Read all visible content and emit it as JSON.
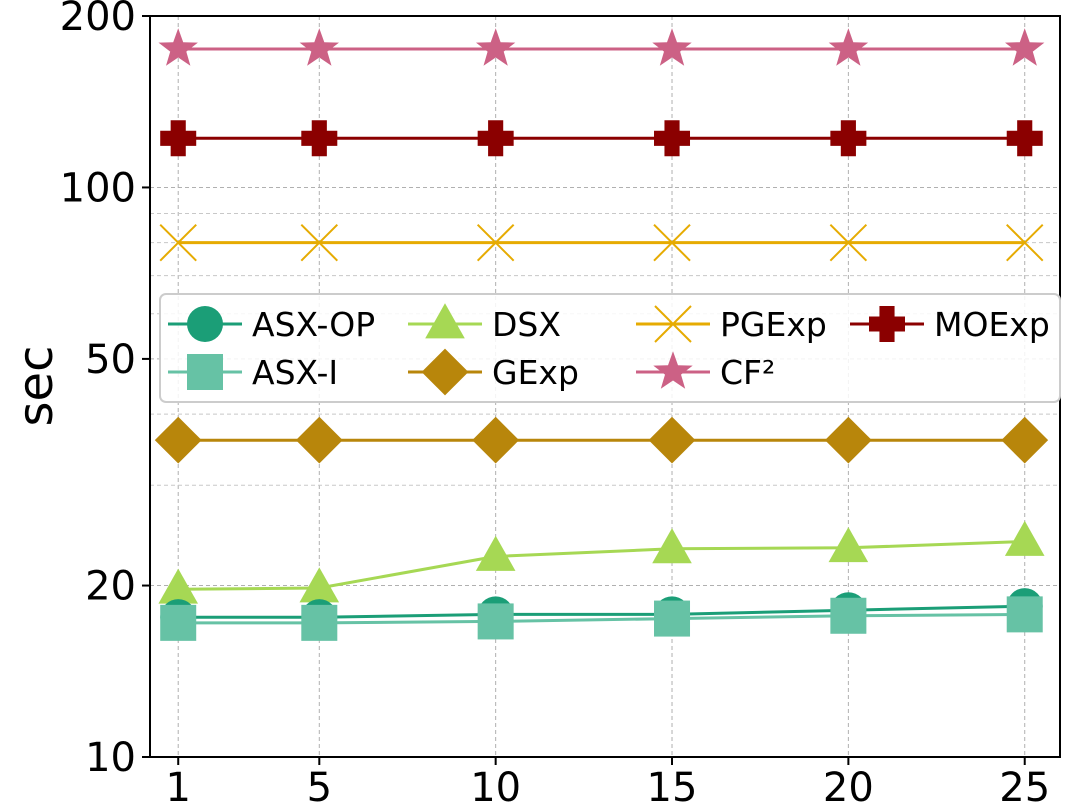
{
  "chart_data": {
    "type": "line",
    "title": "",
    "xlabel": "",
    "ylabel": "sec",
    "yscale": "log",
    "ylim": [
      10,
      200
    ],
    "y_ticks": [
      10,
      20,
      50,
      100,
      200
    ],
    "x": [
      1,
      5,
      10,
      15,
      20,
      25
    ],
    "grid": true,
    "legend_position": "center (upper middle)",
    "series": [
      {
        "name": "ASX-OP",
        "values": [
          17.6,
          17.6,
          17.8,
          17.8,
          18.1,
          18.4
        ],
        "color": "#1b9e77",
        "marker": "circle"
      },
      {
        "name": "ASX-I",
        "values": [
          17.2,
          17.2,
          17.3,
          17.5,
          17.7,
          17.8
        ],
        "color": "#66c2a5",
        "marker": "square"
      },
      {
        "name": "DSX",
        "values": [
          19.7,
          19.8,
          22.5,
          23.2,
          23.3,
          23.9
        ],
        "color": "#a6d854",
        "marker": "triangle"
      },
      {
        "name": "GExp",
        "values": [
          36,
          36,
          36,
          36,
          36,
          36
        ],
        "color": "#b8860b",
        "marker": "diamond"
      },
      {
        "name": "PGExp",
        "values": [
          80,
          80,
          80,
          80,
          80,
          80
        ],
        "color": "#e6ab02",
        "marker": "x"
      },
      {
        "name": "CF²",
        "values": [
          175,
          175,
          175,
          175,
          175,
          175
        ],
        "color": "#cc6185",
        "marker": "star"
      },
      {
        "name": "MOExp",
        "values": [
          122,
          122,
          122,
          122,
          122,
          122
        ],
        "color": "#8b0000",
        "marker": "plus"
      }
    ]
  }
}
